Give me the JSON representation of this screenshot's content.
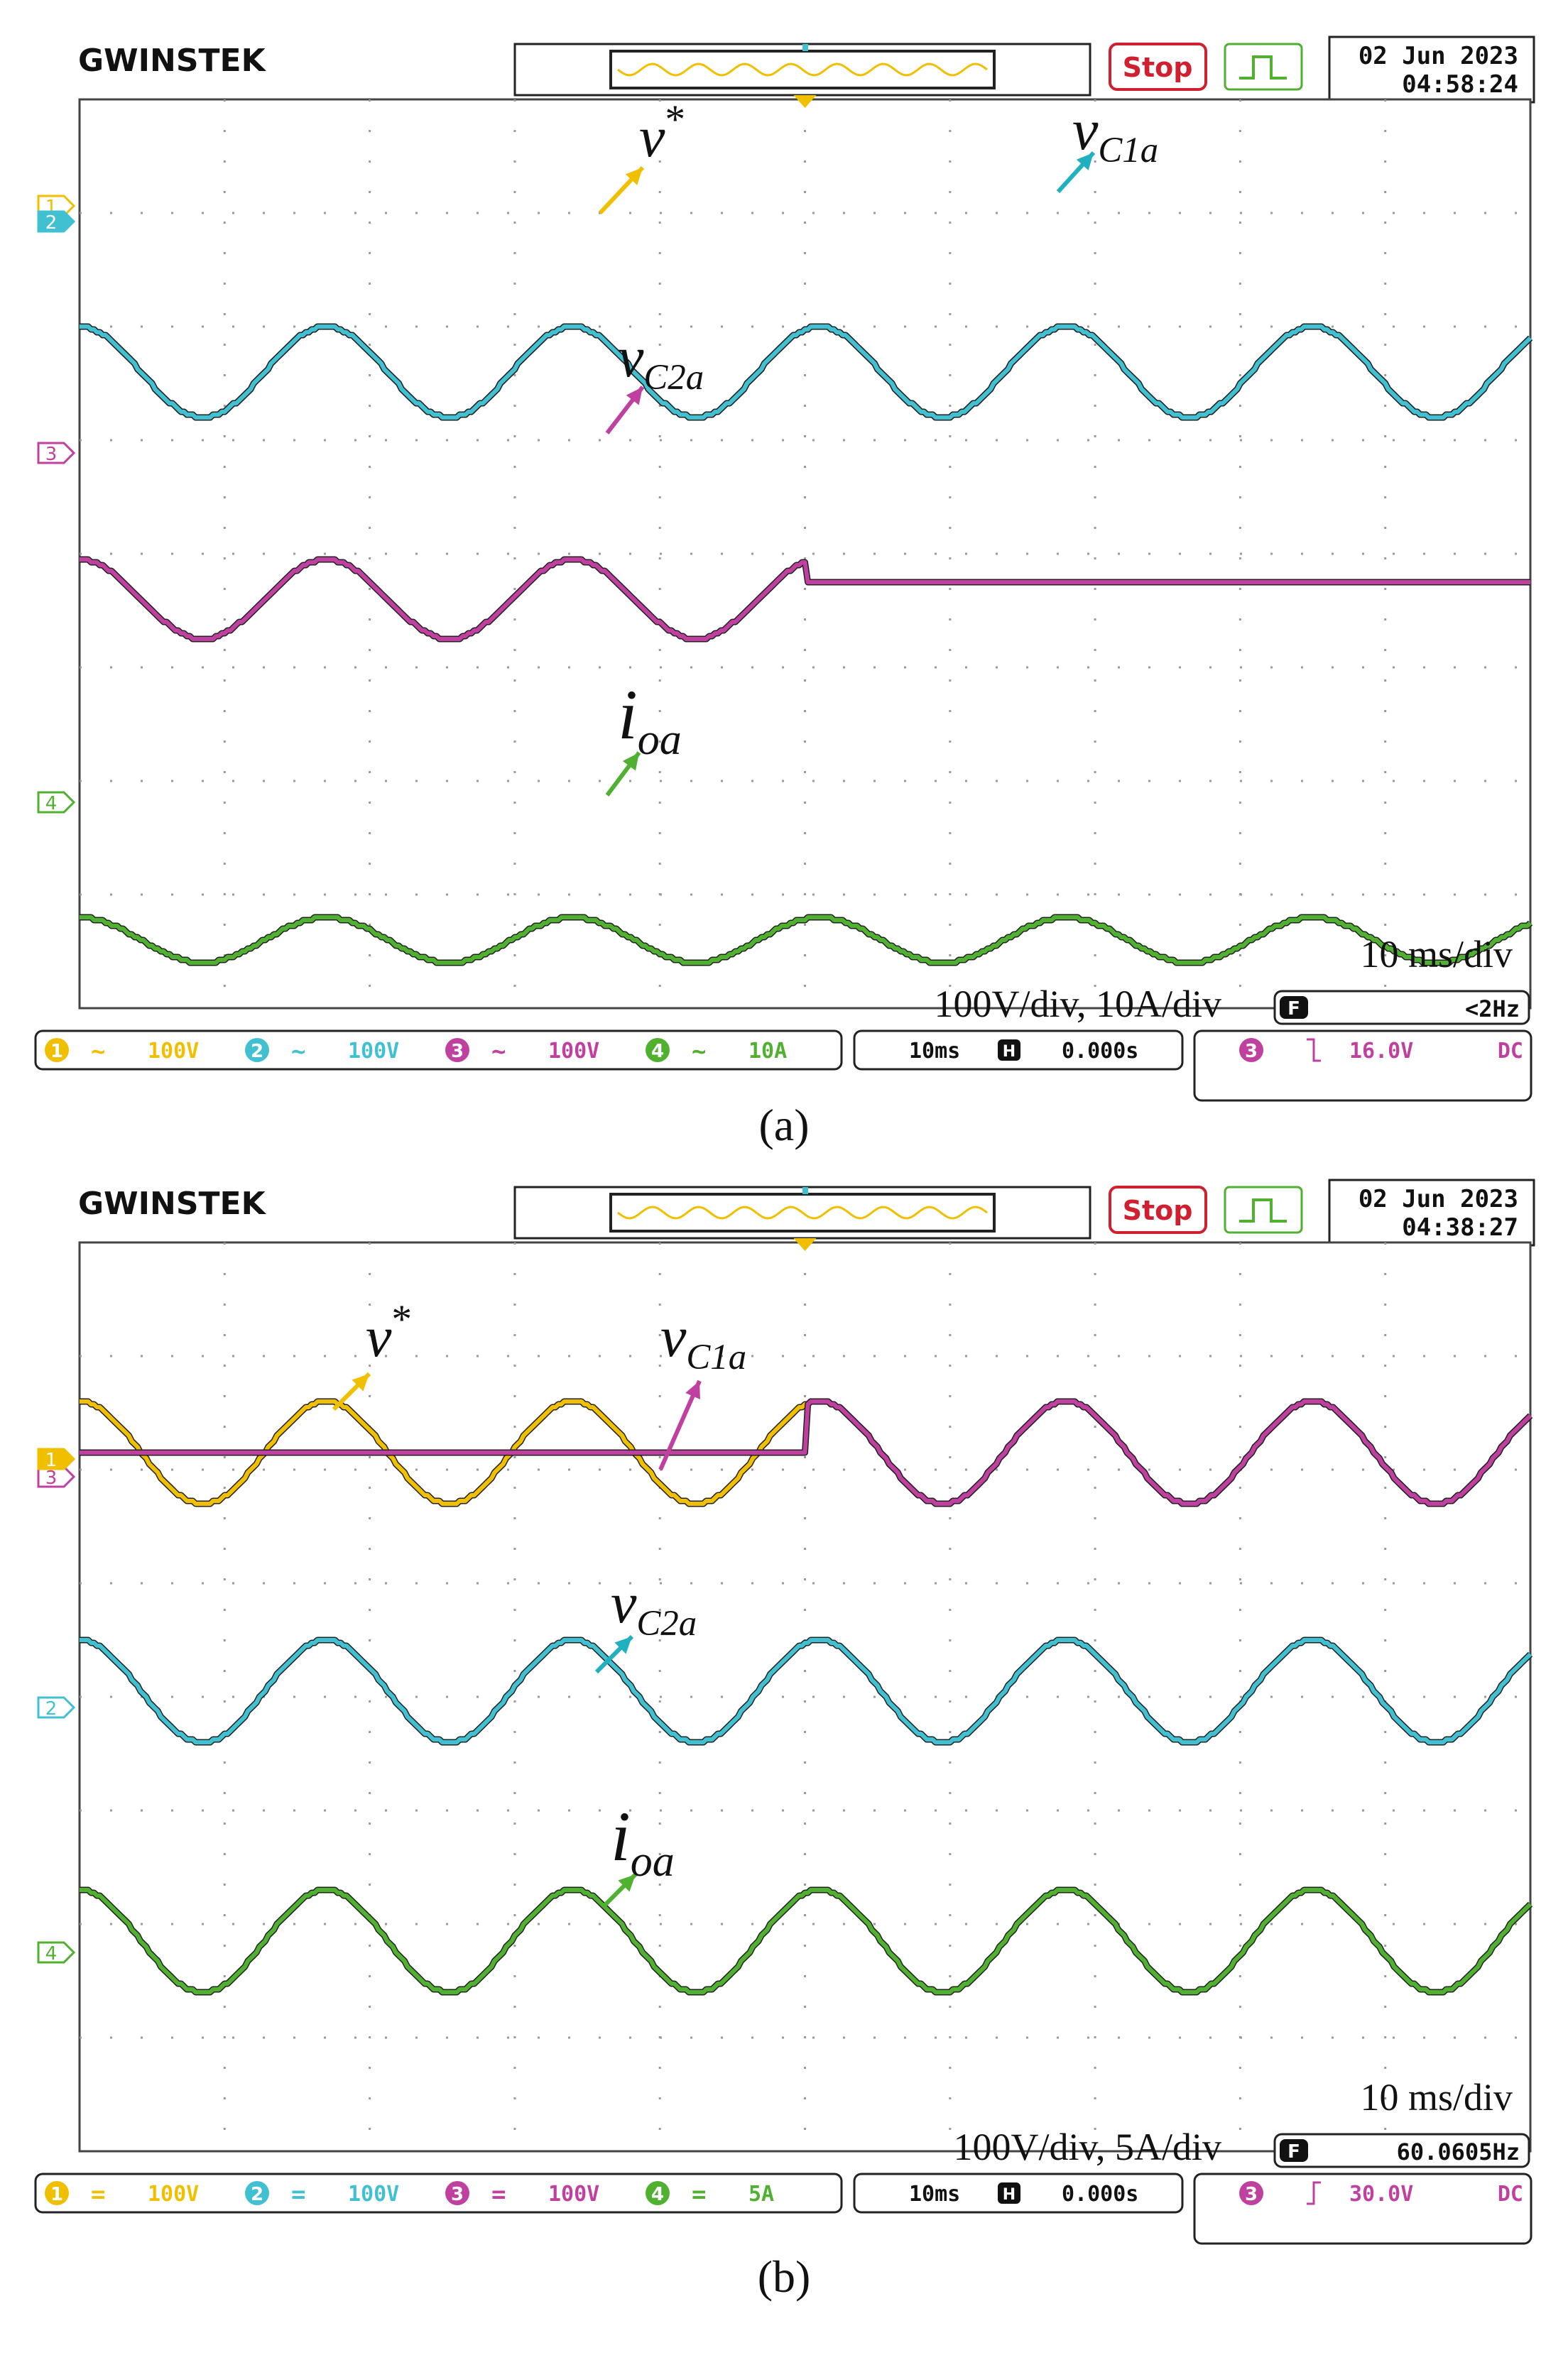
{
  "chart_data": [
    {
      "type": "line",
      "caption": "(a)",
      "brand": "GWINSTEK",
      "run_state": "Stop",
      "date": "02 Jun 2023",
      "time": "04:58:24",
      "labels": {
        "vref": "v*",
        "vc1": "vC1a",
        "vc2": "vC2a",
        "io": "ioa"
      },
      "scale_text": "10 ms/div",
      "vert_text": "100V/div, 10A/div",
      "freq_text": "<2Hz",
      "channels": [
        {
          "num": "1",
          "coupling": "~",
          "scale": "100V",
          "color": "#f0c000"
        },
        {
          "num": "2",
          "coupling": "~",
          "scale": "100V",
          "color": "#40c0d0"
        },
        {
          "num": "3",
          "coupling": "~",
          "scale": "100V",
          "color": "#c040a0"
        },
        {
          "num": "4",
          "coupling": "~",
          "scale": "10A",
          "color": "#50b030"
        }
      ],
      "timebase": "10ms",
      "position": "0.000s",
      "trigger": {
        "channel": "3",
        "edge": "falling",
        "level": "16.0V",
        "coupling": "DC"
      },
      "x_divisions": 10,
      "series": [
        {
          "name": "v*",
          "channel": 1,
          "offset_div": 2.4,
          "amplitude_div": 0.4,
          "period_div": 1.7,
          "phase": 0.0,
          "until_div": 10
        },
        {
          "name": "vC1a",
          "channel": 2,
          "offset_div": 2.4,
          "amplitude_div": 0.4,
          "period_div": 1.7,
          "phase": 0.0,
          "until_div": 10
        },
        {
          "name": "vC2a",
          "channel": 3,
          "offset_div": 4.4,
          "amplitude_div": 0.35,
          "period_div": 1.7,
          "phase": 0.0,
          "until_div": 5.0,
          "after_level_div": 4.25
        },
        {
          "name": "ioa",
          "channel": 4,
          "offset_div": 7.4,
          "amplitude_div": 0.2,
          "period_div": 1.7,
          "phase": 0.0,
          "until_div": 10
        }
      ]
    },
    {
      "type": "line",
      "caption": "(b)",
      "brand": "GWINSTEK",
      "run_state": "Stop",
      "date": "02 Jun 2023",
      "time": "04:38:27",
      "labels": {
        "vref": "v*",
        "vc1": "vC1a",
        "vc2": "vC2a",
        "io": "ioa"
      },
      "scale_text": "10 ms/div",
      "vert_text": "100V/div, 5A/div",
      "freq_text": "60.0605Hz",
      "channels": [
        {
          "num": "1",
          "coupling": "=",
          "scale": "100V",
          "color": "#f0c000"
        },
        {
          "num": "2",
          "coupling": "=",
          "scale": "100V",
          "color": "#40c0d0"
        },
        {
          "num": "3",
          "coupling": "=",
          "scale": "100V",
          "color": "#c040a0"
        },
        {
          "num": "4",
          "coupling": "=",
          "scale": "5A",
          "color": "#50b030"
        }
      ],
      "timebase": "10ms",
      "position": "0.000s",
      "trigger": {
        "channel": "3",
        "edge": "rising",
        "level": "30.0V",
        "coupling": "DC"
      },
      "x_divisions": 10,
      "series": [
        {
          "name": "v*",
          "channel": 1,
          "offset_div": 1.85,
          "amplitude_div": 0.45,
          "period_div": 1.7,
          "phase": 0.0,
          "until_div": 10
        },
        {
          "name": "vC1a",
          "channel": 3,
          "offset_div": 1.85,
          "amplitude_div": 0.45,
          "period_div": 1.7,
          "phase": 0.0,
          "from_div": 5.0,
          "before_level_div": 1.85
        },
        {
          "name": "vC2a",
          "channel": 2,
          "offset_div": 3.95,
          "amplitude_div": 0.45,
          "period_div": 1.7,
          "phase": 0.0,
          "until_div": 10
        },
        {
          "name": "ioa",
          "channel": 4,
          "offset_div": 6.15,
          "amplitude_div": 0.45,
          "period_div": 1.7,
          "phase": 0.0,
          "until_div": 10
        }
      ]
    }
  ]
}
